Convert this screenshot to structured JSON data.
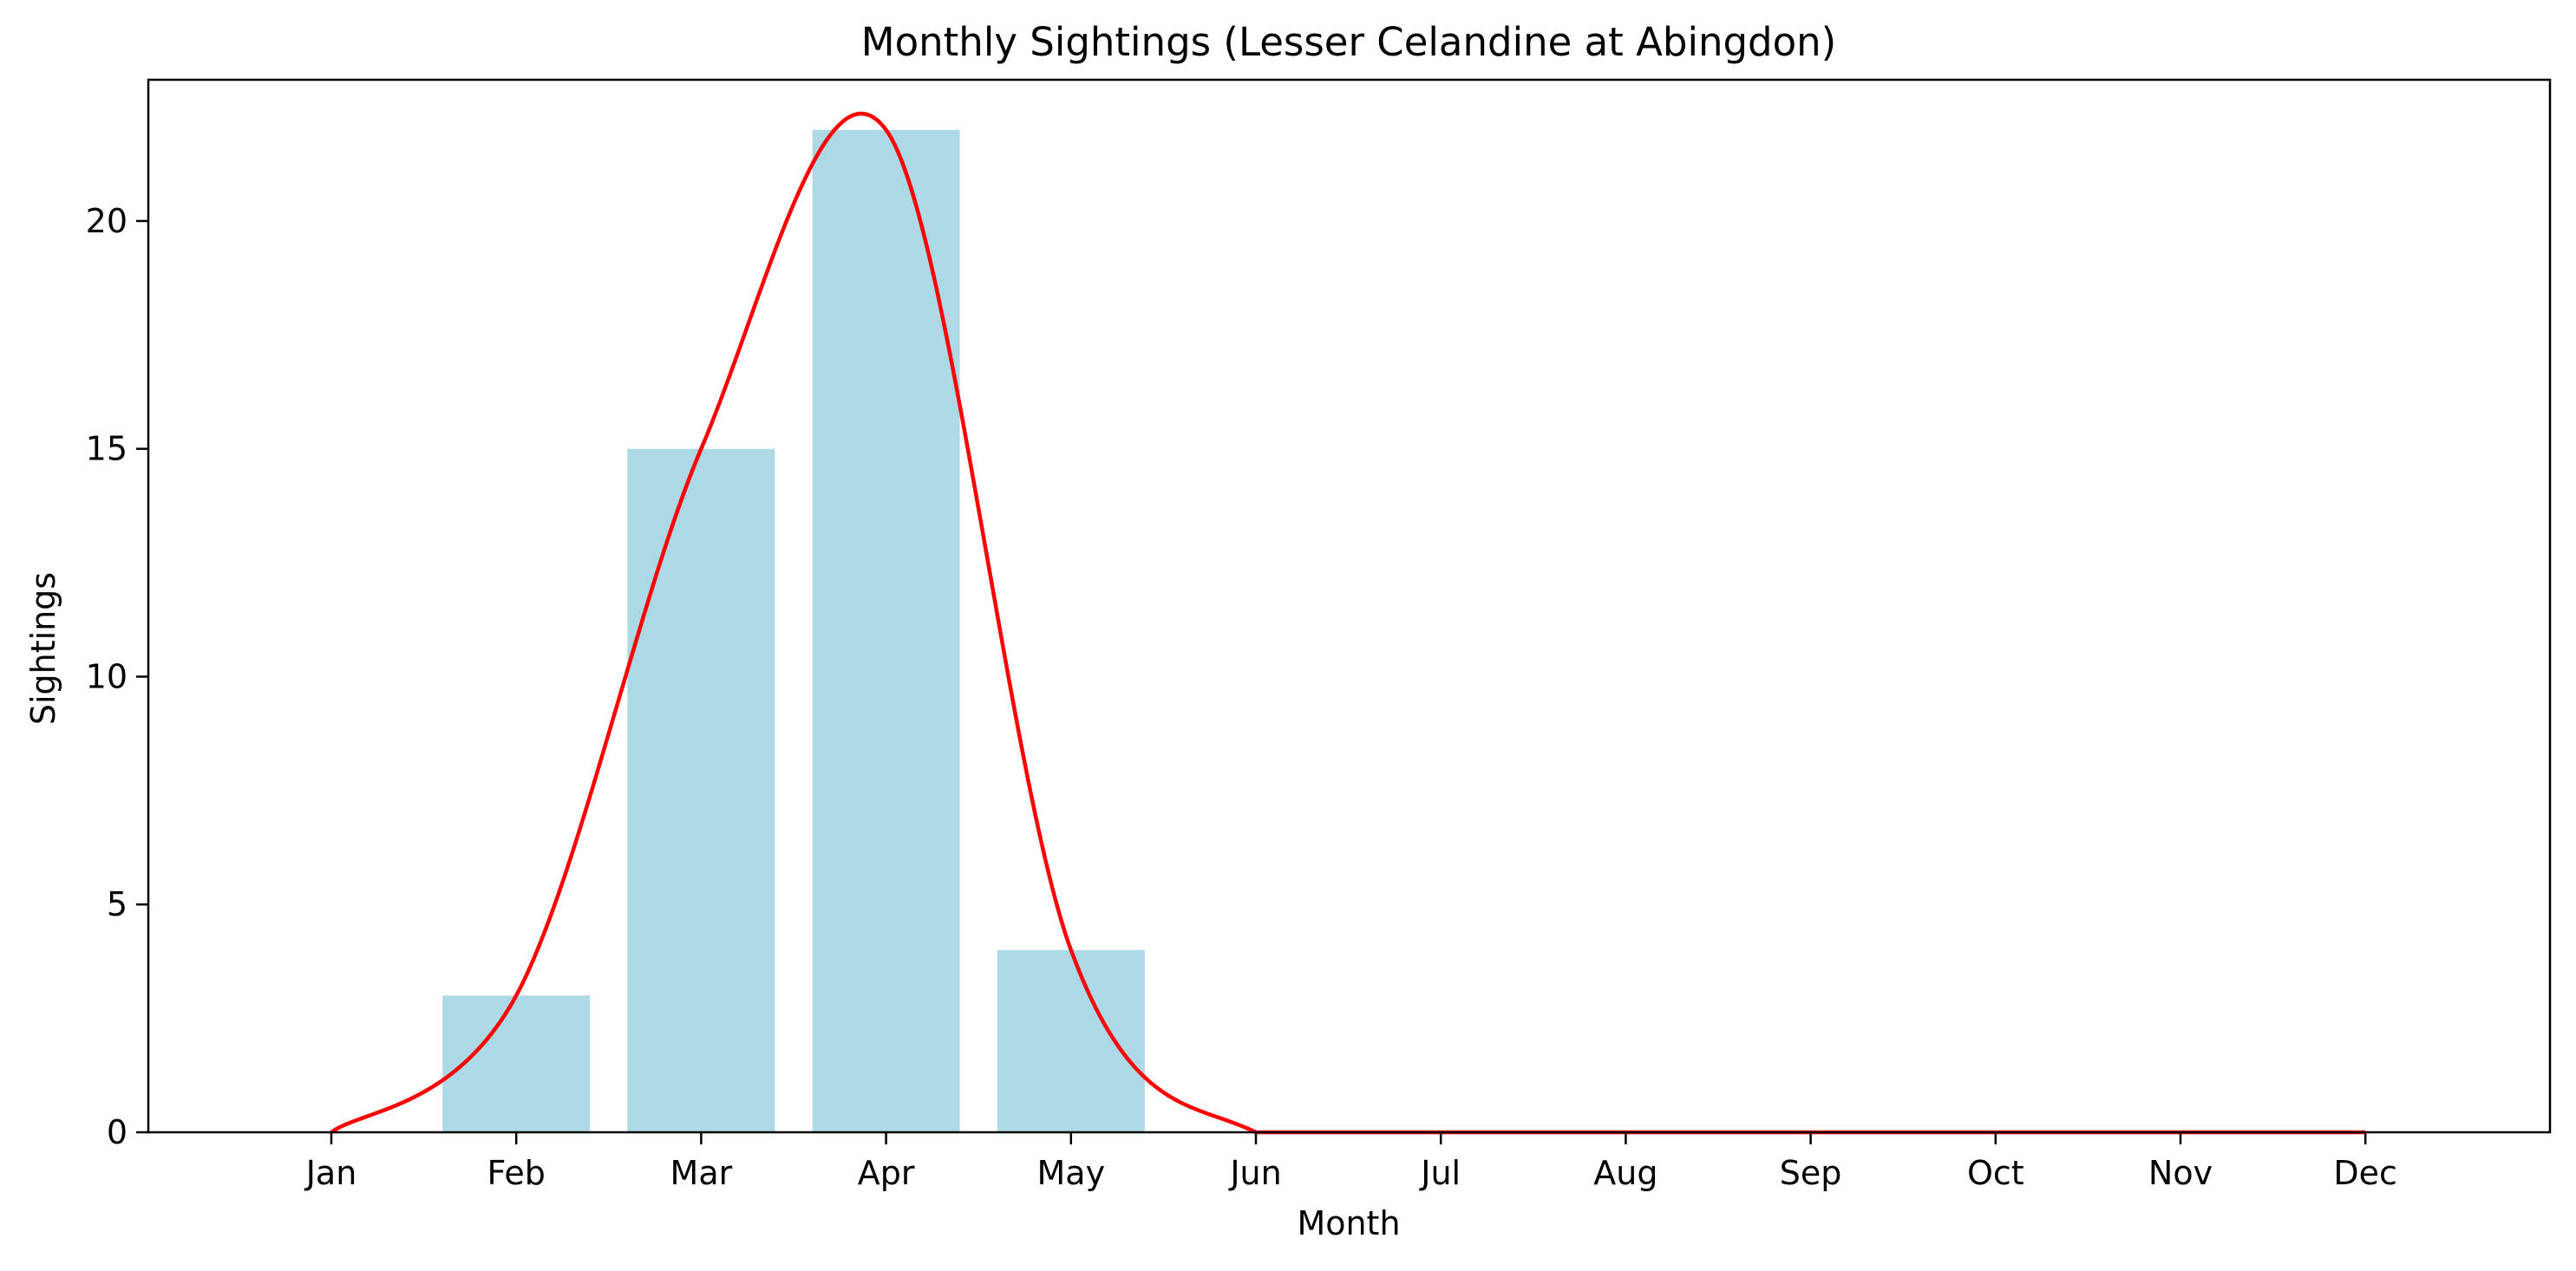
{
  "chart_data": {
    "type": "bar",
    "title": "Monthly Sightings (Lesser Celandine at Abingdon)",
    "xlabel": "Month",
    "ylabel": "Sightings",
    "categories": [
      "Jan",
      "Feb",
      "Mar",
      "Apr",
      "May",
      "Jun",
      "Jul",
      "Aug",
      "Sep",
      "Oct",
      "Nov",
      "Dec"
    ],
    "values": [
      0,
      3,
      15,
      22,
      4,
      0,
      0,
      0,
      0,
      0,
      0,
      0
    ],
    "ylim": [
      0,
      23.1
    ],
    "yticks": [
      0,
      5,
      10,
      15,
      20
    ],
    "grid": false,
    "legend": "none",
    "bar_color": "#add8e6",
    "line": {
      "type": "line",
      "smooth": true,
      "color": "#ff0000",
      "values": [
        0,
        3,
        15,
        22,
        4,
        0,
        0,
        0,
        0,
        0,
        0,
        0
      ]
    }
  }
}
